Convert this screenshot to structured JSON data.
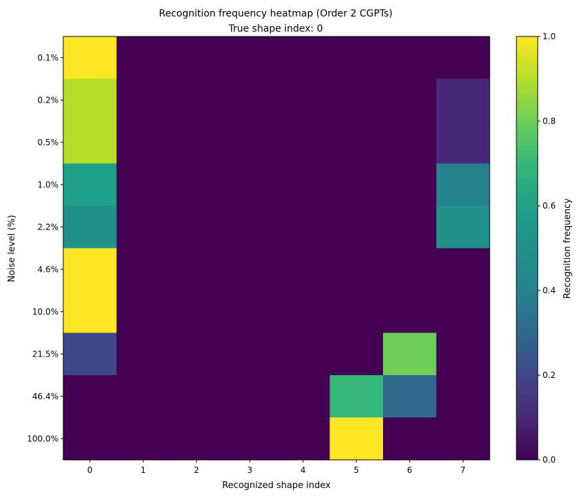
{
  "chart_data": {
    "type": "heatmap",
    "title": "Recognition frequency heatmap (Order 2 CGPTs)",
    "subtitle": "True shape index: 0",
    "xlabel": "Recognized shape index",
    "ylabel": "Noise level (%)",
    "x_categories": [
      "0",
      "1",
      "2",
      "3",
      "4",
      "5",
      "6",
      "7"
    ],
    "y_categories": [
      "0.1%",
      "0.2%",
      "0.5%",
      "1.0%",
      "2.2%",
      "4.6%",
      "10.0%",
      "21.5%",
      "46.4%",
      "100.0%"
    ],
    "values": [
      [
        1.0,
        0,
        0,
        0,
        0,
        0,
        0,
        0
      ],
      [
        0.9,
        0,
        0,
        0,
        0,
        0,
        0,
        0.1
      ],
      [
        0.9,
        0,
        0,
        0,
        0,
        0,
        0,
        0.1
      ],
      [
        0.6,
        0,
        0,
        0,
        0,
        0,
        0,
        0.4
      ],
      [
        0.5,
        0,
        0,
        0,
        0,
        0,
        0,
        0.5
      ],
      [
        1.0,
        0,
        0,
        0,
        0,
        0,
        0,
        0
      ],
      [
        1.0,
        0,
        0,
        0,
        0,
        0,
        0,
        0
      ],
      [
        0.2,
        0,
        0,
        0,
        0,
        0,
        0.8,
        0
      ],
      [
        0,
        0,
        0,
        0,
        0,
        0.7,
        0.3,
        0
      ],
      [
        0,
        0,
        0,
        0,
        0,
        1.0,
        0,
        0
      ]
    ],
    "colormap": "viridis",
    "colorbar": {
      "label": "Recognition frequency",
      "range": [
        0.0,
        1.0
      ],
      "ticks": [
        "0.0",
        "0.2",
        "0.4",
        "0.6",
        "0.8",
        "1.0"
      ]
    },
    "grid": false
  }
}
